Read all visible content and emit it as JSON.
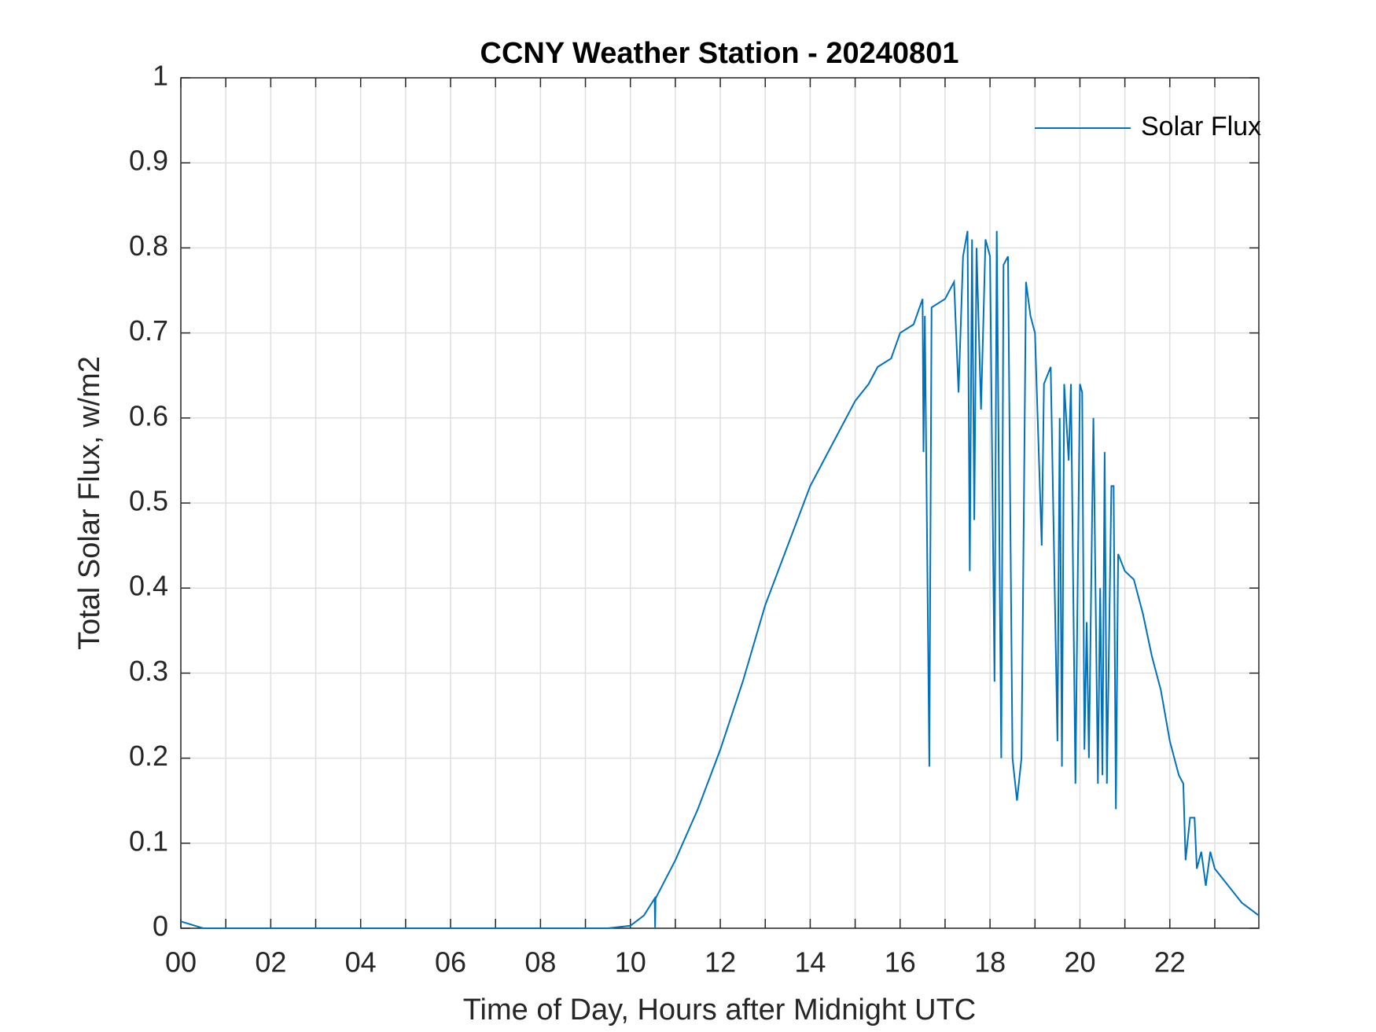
{
  "chart_data": {
    "type": "line",
    "title": "CCNY Weather Station - 20240801",
    "x_label": "Time of Day, Hours after Midnight UTC",
    "y_label": "Total Solar Flux, w/m2",
    "legend_position": "upper right",
    "grid": true,
    "xlim": [
      0,
      23.98
    ],
    "ylim": [
      0,
      1
    ],
    "xticks": [
      {
        "value": 0,
        "label": "00"
      },
      {
        "value": 2,
        "label": "02"
      },
      {
        "value": 4,
        "label": "04"
      },
      {
        "value": 6,
        "label": "06"
      },
      {
        "value": 8,
        "label": "08"
      },
      10,
      12,
      14,
      16,
      18,
      20,
      22
    ],
    "xminor_ticks": [
      1,
      3,
      5,
      7,
      9,
      11,
      13,
      15,
      17,
      19,
      21,
      23
    ],
    "yticks": [
      0,
      0.1,
      0.2,
      0.3,
      0.4,
      0.5,
      0.6,
      0.7,
      0.8,
      0.9,
      1
    ],
    "series": [
      {
        "name": "Solar Flux",
        "color": "#0072bd",
        "x": [
          0,
          0.5,
          2,
          4,
          6,
          8,
          9.5,
          10,
          10.3,
          10.54,
          10.55,
          10.56,
          10.57,
          11,
          11.5,
          12,
          12.5,
          13,
          13.5,
          14,
          14.5,
          15,
          15.3,
          15.5,
          15.8,
          16,
          16.3,
          16.5,
          16.52,
          16.55,
          16.65,
          16.7,
          17,
          17.2,
          17.3,
          17.4,
          17.5,
          17.55,
          17.6,
          17.65,
          17.7,
          17.8,
          17.9,
          18,
          18.1,
          18.15,
          18.25,
          18.3,
          18.4,
          18.5,
          18.6,
          18.7,
          18.8,
          18.9,
          19,
          19.15,
          19.2,
          19.35,
          19.5,
          19.55,
          19.6,
          19.65,
          19.75,
          19.8,
          19.9,
          20,
          20.05,
          20.1,
          20.15,
          20.2,
          20.3,
          20.4,
          20.45,
          20.5,
          20.55,
          20.6,
          20.7,
          20.75,
          20.8,
          20.85,
          21,
          21.2,
          21.4,
          21.6,
          21.8,
          22,
          22.2,
          22.3,
          22.35,
          22.45,
          22.55,
          22.6,
          22.7,
          22.8,
          22.9,
          23,
          23.3,
          23.6,
          23.98
        ],
        "values": [
          0.008,
          0,
          0,
          0,
          0,
          0,
          0,
          0.003,
          0.015,
          0.035,
          0,
          0.035,
          0.036,
          0.08,
          0.14,
          0.21,
          0.29,
          0.38,
          0.45,
          0.52,
          0.57,
          0.62,
          0.64,
          0.66,
          0.67,
          0.7,
          0.71,
          0.74,
          0.56,
          0.72,
          0.19,
          0.73,
          0.74,
          0.76,
          0.63,
          0.79,
          0.82,
          0.42,
          0.81,
          0.48,
          0.8,
          0.61,
          0.81,
          0.79,
          0.29,
          0.82,
          0.2,
          0.78,
          0.79,
          0.2,
          0.15,
          0.2,
          0.76,
          0.72,
          0.7,
          0.45,
          0.64,
          0.66,
          0.22,
          0.6,
          0.19,
          0.64,
          0.55,
          0.64,
          0.17,
          0.64,
          0.63,
          0.21,
          0.36,
          0.2,
          0.6,
          0.17,
          0.4,
          0.18,
          0.56,
          0.17,
          0.52,
          0.52,
          0.14,
          0.44,
          0.42,
          0.41,
          0.37,
          0.32,
          0.28,
          0.22,
          0.18,
          0.17,
          0.08,
          0.13,
          0.13,
          0.07,
          0.09,
          0.05,
          0.09,
          0.07,
          0.05,
          0.03,
          0.015
        ]
      }
    ]
  }
}
